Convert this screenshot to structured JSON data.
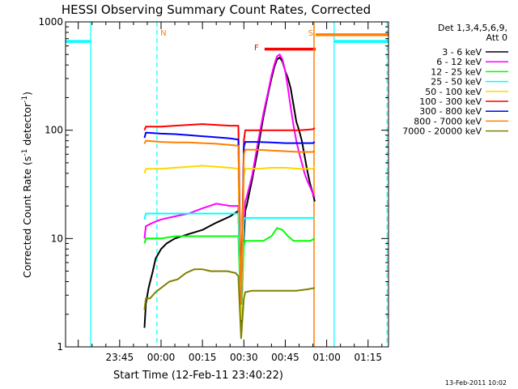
{
  "chart_data": {
    "type": "line",
    "title": "HESSI Observing Summary Count Rates, Corrected",
    "xlabel": "Start Time (12-Feb-11 23:40:22)",
    "ylabel_main": "Corrected Count Rate (s",
    "ylabel_sup1": "-1",
    "ylabel_mid": " detector",
    "ylabel_sup2": "-1",
    "ylabel_end": ")",
    "yscale": "log",
    "xlim": [
      -19.6,
      97.4
    ],
    "ylim": [
      1,
      1000
    ],
    "x_ticks": [
      {
        "x": 0,
        "label": "23:45"
      },
      {
        "x": 15,
        "label": "00:00"
      },
      {
        "x": 30,
        "label": "00:15"
      },
      {
        "x": 45,
        "label": "00:30"
      },
      {
        "x": 60,
        "label": "00:45"
      },
      {
        "x": 75,
        "label": "01:00"
      },
      {
        "x": 90,
        "label": "01:15"
      }
    ],
    "y_ticks": [
      {
        "y": 1,
        "label": "1"
      },
      {
        "y": 10,
        "label": "10"
      },
      {
        "y": 100,
        "label": "100"
      },
      {
        "y": 1000,
        "label": "1000"
      }
    ],
    "legend_title": [
      "Det 1,3,4,5,6,9,",
      "Att 0"
    ],
    "legend_position": "right",
    "footer_date": "13-Feb-2011 10:02",
    "attenuator_flags": [
      {
        "label": "N",
        "x": 13.5,
        "color": "#ff7f00"
      },
      {
        "label": "F",
        "x": 52.5,
        "color": "#ff0000"
      },
      {
        "label": "S",
        "x": 71.0,
        "color": "#ff7f00"
      }
    ],
    "bars": [
      {
        "flag": "F",
        "x_start": 52.5,
        "x_end": 71.0,
        "y": 560,
        "color": "#ff0000"
      },
      {
        "flag": "S",
        "x_start": 71.0,
        "x_end": 97.4,
        "y": 760,
        "color": "#ff7f00"
      },
      {
        "flag": "night",
        "x_start": -19.6,
        "x_end": -10.5,
        "y": 660,
        "color": "#00ffff"
      },
      {
        "flag": "night",
        "x_start": 77.7,
        "x_end": 97.4,
        "y": 660,
        "color": "#00ffff"
      }
    ],
    "night_boundaries": [
      {
        "x": -10.5,
        "style": "solid",
        "color": "#00ffff"
      },
      {
        "x": 13.5,
        "style": "dashed",
        "color": "#00ffff"
      },
      {
        "x": 77.7,
        "style": "solid",
        "color": "#00ffff"
      },
      {
        "x": 96.9,
        "style": "dashed",
        "color": "#00ffff"
      }
    ],
    "series": [
      {
        "name": "3 - 6 keV",
        "color": "#000000",
        "x": [
          9.0,
          9.5,
          10.5,
          12,
          13,
          15,
          17,
          20,
          25,
          30,
          35,
          40,
          43,
          44,
          45,
          45.5,
          46,
          48,
          50,
          52,
          54,
          55,
          56,
          57,
          58,
          59,
          60,
          61,
          62,
          63,
          64,
          65,
          66,
          67,
          68,
          69,
          70,
          70.7
        ],
        "y": [
          1.5,
          2.5,
          3.5,
          5.0,
          6.5,
          8.0,
          9.0,
          10.0,
          11.0,
          12.0,
          14.0,
          16.0,
          18.0,
          1.7,
          10.0,
          18.0,
          20.0,
          35.0,
          65.0,
          130.0,
          230.0,
          300.0,
          380.0,
          450.0,
          470.0,
          430.0,
          350.0,
          300.0,
          240.0,
          170.0,
          120.0,
          100.0,
          80.0,
          58.0,
          42.0,
          32.0,
          26.0,
          22.0
        ]
      },
      {
        "name": "6 - 12 keV",
        "color": "#ff00ff",
        "x": [
          9.0,
          9.5,
          12,
          15,
          20,
          25,
          30,
          35,
          40,
          43,
          44,
          45,
          45.5,
          46,
          48,
          50,
          52,
          54,
          55,
          56,
          57,
          58,
          59,
          60,
          61,
          62,
          63,
          64,
          65,
          66,
          67,
          68,
          69,
          70,
          70.7
        ],
        "y": [
          10.0,
          13.0,
          14.0,
          15.0,
          16.0,
          17.0,
          19.0,
          21.0,
          20.0,
          20.0,
          1.8,
          15.0,
          22.0,
          24.0,
          38.0,
          75.0,
          140.0,
          240.0,
          320.0,
          400.0,
          480.0,
          500.0,
          450.0,
          350.0,
          240.0,
          160.0,
          110.0,
          80.0,
          62.0,
          50.0,
          40.0,
          34.0,
          30.0,
          26.0,
          24.0
        ]
      },
      {
        "name": "12 - 25 keV",
        "color": "#00ff00",
        "x": [
          9.0,
          9.5,
          15,
          20,
          25,
          30,
          35,
          40,
          43,
          44,
          45,
          45.5,
          48,
          52,
          55,
          57,
          59,
          61,
          63,
          65,
          67,
          69,
          70.7
        ],
        "y": [
          9.0,
          10.0,
          10.0,
          10.5,
          10.5,
          10.5,
          10.5,
          10.5,
          10.5,
          1.8,
          8.5,
          9.5,
          9.5,
          9.5,
          10.5,
          12.5,
          12.0,
          10.5,
          9.5,
          9.5,
          9.5,
          9.5,
          10.0
        ]
      },
      {
        "name": "25 - 50 keV",
        "color": "#00ffff",
        "x": [
          9.0,
          9.5,
          15,
          20,
          25,
          30,
          35,
          40,
          43,
          44,
          45,
          45.5,
          50,
          55,
          60,
          65,
          70,
          70.7
        ],
        "y": [
          15.0,
          17.0,
          17.0,
          17.0,
          17.0,
          17.0,
          17.0,
          17.0,
          17.0,
          1.8,
          15.0,
          15.5,
          15.5,
          15.5,
          15.5,
          15.5,
          15.5,
          15.5
        ]
      },
      {
        "name": "50 - 100 keV",
        "color": "#ffd700",
        "x": [
          9.0,
          9.5,
          15,
          20,
          25,
          30,
          35,
          40,
          43,
          44,
          45,
          45.5,
          50,
          55,
          60,
          65,
          70,
          70.7
        ],
        "y": [
          40.0,
          44.0,
          44.0,
          45.0,
          46.0,
          47.0,
          46.0,
          45.0,
          44.0,
          1.8,
          38.0,
          44.0,
          44.0,
          45.0,
          45.0,
          44.0,
          44.0,
          46.0
        ]
      },
      {
        "name": "100 - 300 keV",
        "color": "#ff0000",
        "x": [
          9.0,
          9.5,
          15,
          20,
          25,
          30,
          35,
          40,
          43,
          44,
          45,
          45.5,
          50,
          55,
          60,
          65,
          70,
          70.7
        ],
        "y": [
          100.0,
          108.0,
          108.0,
          110.0,
          112.0,
          114.0,
          112.0,
          110.0,
          110.0,
          2.5,
          80.0,
          100.0,
          100.0,
          100.0,
          100.0,
          100.0,
          102.0,
          105.0
        ]
      },
      {
        "name": "300 - 800 keV",
        "color": "#0000ff",
        "x": [
          9.0,
          9.5,
          15,
          20,
          25,
          30,
          35,
          40,
          43,
          44,
          45,
          45.5,
          50,
          55,
          60,
          65,
          70,
          70.7
        ],
        "y": [
          85.0,
          95.0,
          93.0,
          92.0,
          90.0,
          88.0,
          86.0,
          84.0,
          82.0,
          2.5,
          70.0,
          78.0,
          78.0,
          77.0,
          76.0,
          76.0,
          76.0,
          78.0
        ]
      },
      {
        "name": "800 - 7000 keV",
        "color": "#ff7f00",
        "x": [
          9.0,
          9.5,
          15,
          20,
          25,
          30,
          35,
          40,
          43,
          44,
          45,
          45.5,
          50,
          55,
          60,
          65,
          70,
          70.7
        ],
        "y": [
          75.0,
          80.0,
          78.0,
          77.0,
          77.0,
          76.0,
          75.0,
          73.0,
          72.0,
          2.5,
          60.0,
          66.0,
          66.0,
          65.0,
          64.0,
          63.0,
          63.0,
          65.0
        ]
      },
      {
        "name": "7000 - 20000 keV",
        "color": "#808000",
        "x": [
          9.0,
          9.5,
          11,
          13,
          15,
          18,
          21,
          24,
          27,
          30,
          33,
          36,
          39,
          42,
          43,
          44,
          45,
          45.5,
          48,
          52,
          56,
          60,
          64,
          68,
          70.7
        ],
        "y": [
          2.2,
          2.8,
          2.8,
          3.2,
          3.5,
          4.0,
          4.2,
          4.8,
          5.2,
          5.2,
          5.0,
          5.0,
          5.0,
          4.8,
          4.5,
          1.2,
          2.8,
          3.2,
          3.3,
          3.3,
          3.3,
          3.3,
          3.3,
          3.4,
          3.5
        ]
      }
    ]
  }
}
